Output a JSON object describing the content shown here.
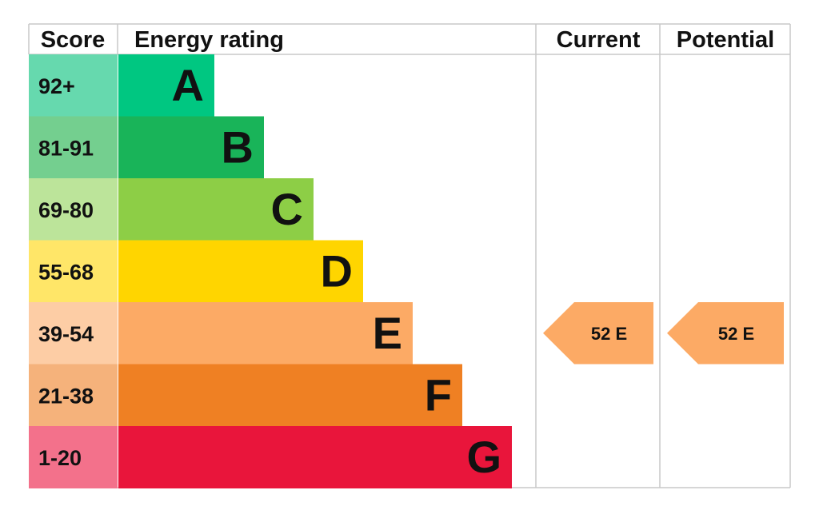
{
  "headers": {
    "score": "Score",
    "rating": "Energy rating",
    "current": "Current",
    "potential": "Potential"
  },
  "chart_data": {
    "type": "bar",
    "categories": [
      "A",
      "B",
      "C",
      "D",
      "E",
      "F",
      "G"
    ],
    "score_ranges": [
      "92+",
      "81-91",
      "69-80",
      "55-68",
      "39-54",
      "21-38",
      "1-20"
    ],
    "band_colors": [
      "#00c781",
      "#19b459",
      "#8dce46",
      "#ffd500",
      "#fcaa65",
      "#ef8023",
      "#e9153b"
    ],
    "score_cell_colors": [
      "#66d9ae",
      "#74cf8f",
      "#bce49a",
      "#ffe668",
      "#fdcda5",
      "#f5b27b",
      "#f3718b"
    ],
    "current": {
      "score": 52,
      "band": "E",
      "label": "52  E",
      "color": "#fcaa65"
    },
    "potential": {
      "score": 52,
      "band": "E",
      "label": "52  E",
      "color": "#fcaa65"
    }
  }
}
